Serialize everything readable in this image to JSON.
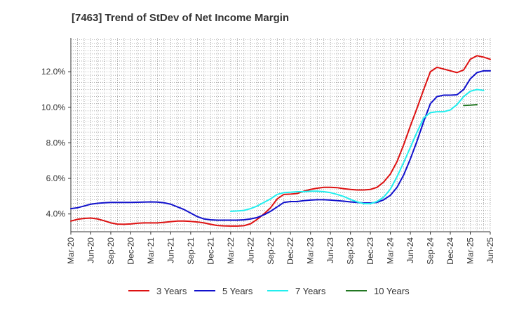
{
  "chart_data": {
    "type": "line",
    "title": "[7463]  Trend of StDev of Net Income Margin",
    "xlabel": "",
    "ylabel": "",
    "x_ticks": [
      "Mar-20",
      "Jun-20",
      "Sep-20",
      "Dec-20",
      "Mar-21",
      "Jun-21",
      "Sep-21",
      "Dec-21",
      "Mar-22",
      "Jun-22",
      "Sep-22",
      "Dec-22",
      "Mar-23",
      "Jun-23",
      "Sep-23",
      "Dec-23",
      "Mar-24",
      "Jun-24",
      "Sep-24",
      "Dec-24",
      "Mar-25",
      "Jun-25"
    ],
    "y_ticks": [
      "4.0%",
      "6.0%",
      "8.0%",
      "10.0%",
      "12.0%"
    ],
    "y_tick_values": [
      4.0,
      6.0,
      8.0,
      10.0,
      12.0
    ],
    "ylim": [
      3.0,
      13.9
    ],
    "grid": true,
    "legend_position": "bottom",
    "series": [
      {
        "name": "3 Years",
        "color": "#dd1111",
        "start": "Mar-20",
        "values": [
          3.6,
          3.7,
          3.75,
          3.77,
          3.72,
          3.62,
          3.5,
          3.43,
          3.42,
          3.44,
          3.48,
          3.5,
          3.5,
          3.5,
          3.53,
          3.57,
          3.6,
          3.6,
          3.58,
          3.55,
          3.5,
          3.42,
          3.35,
          3.33,
          3.32,
          3.32,
          3.34,
          3.45,
          3.7,
          4.0,
          4.35,
          4.85,
          5.1,
          5.12,
          5.15,
          5.28,
          5.38,
          5.45,
          5.5,
          5.5,
          5.48,
          5.42,
          5.38,
          5.35,
          5.35,
          5.38,
          5.5,
          5.8,
          6.25,
          6.95,
          7.9,
          8.95,
          9.95,
          11.0,
          12.0,
          12.25,
          12.15,
          12.05,
          11.95,
          12.1,
          12.7,
          12.9,
          12.82,
          12.7
        ]
      },
      {
        "name": "5 Years",
        "color": "#1111cc",
        "start": "Mar-20",
        "values": [
          4.3,
          4.35,
          4.45,
          4.55,
          4.6,
          4.63,
          4.65,
          4.65,
          4.65,
          4.65,
          4.66,
          4.67,
          4.68,
          4.67,
          4.63,
          4.55,
          4.4,
          4.25,
          4.05,
          3.85,
          3.72,
          3.67,
          3.65,
          3.65,
          3.65,
          3.65,
          3.67,
          3.72,
          3.8,
          3.95,
          4.15,
          4.4,
          4.65,
          4.7,
          4.7,
          4.75,
          4.78,
          4.8,
          4.8,
          4.78,
          4.75,
          4.72,
          4.68,
          4.65,
          4.62,
          4.62,
          4.65,
          4.8,
          5.05,
          5.5,
          6.2,
          7.1,
          8.1,
          9.2,
          10.2,
          10.6,
          10.68,
          10.68,
          10.7,
          11.0,
          11.6,
          11.95,
          12.05,
          12.05
        ]
      },
      {
        "name": "7 Years",
        "color": "#22eeee",
        "start": "Mar-22",
        "values": [
          4.15,
          4.17,
          4.2,
          4.3,
          4.45,
          4.65,
          4.85,
          5.1,
          5.2,
          5.22,
          5.25,
          5.25,
          5.28,
          5.28,
          5.25,
          5.2,
          5.1,
          4.98,
          4.82,
          4.68,
          4.58,
          4.58,
          4.7,
          4.95,
          5.4,
          6.1,
          6.9,
          7.75,
          8.6,
          9.4,
          9.7,
          9.75,
          9.75,
          9.85,
          10.15,
          10.6,
          10.9,
          11.0,
          10.95
        ]
      },
      {
        "name": "10 Years",
        "color": "#227722",
        "start": "Feb-25",
        "values": [
          10.1,
          10.12,
          10.15
        ]
      }
    ]
  }
}
